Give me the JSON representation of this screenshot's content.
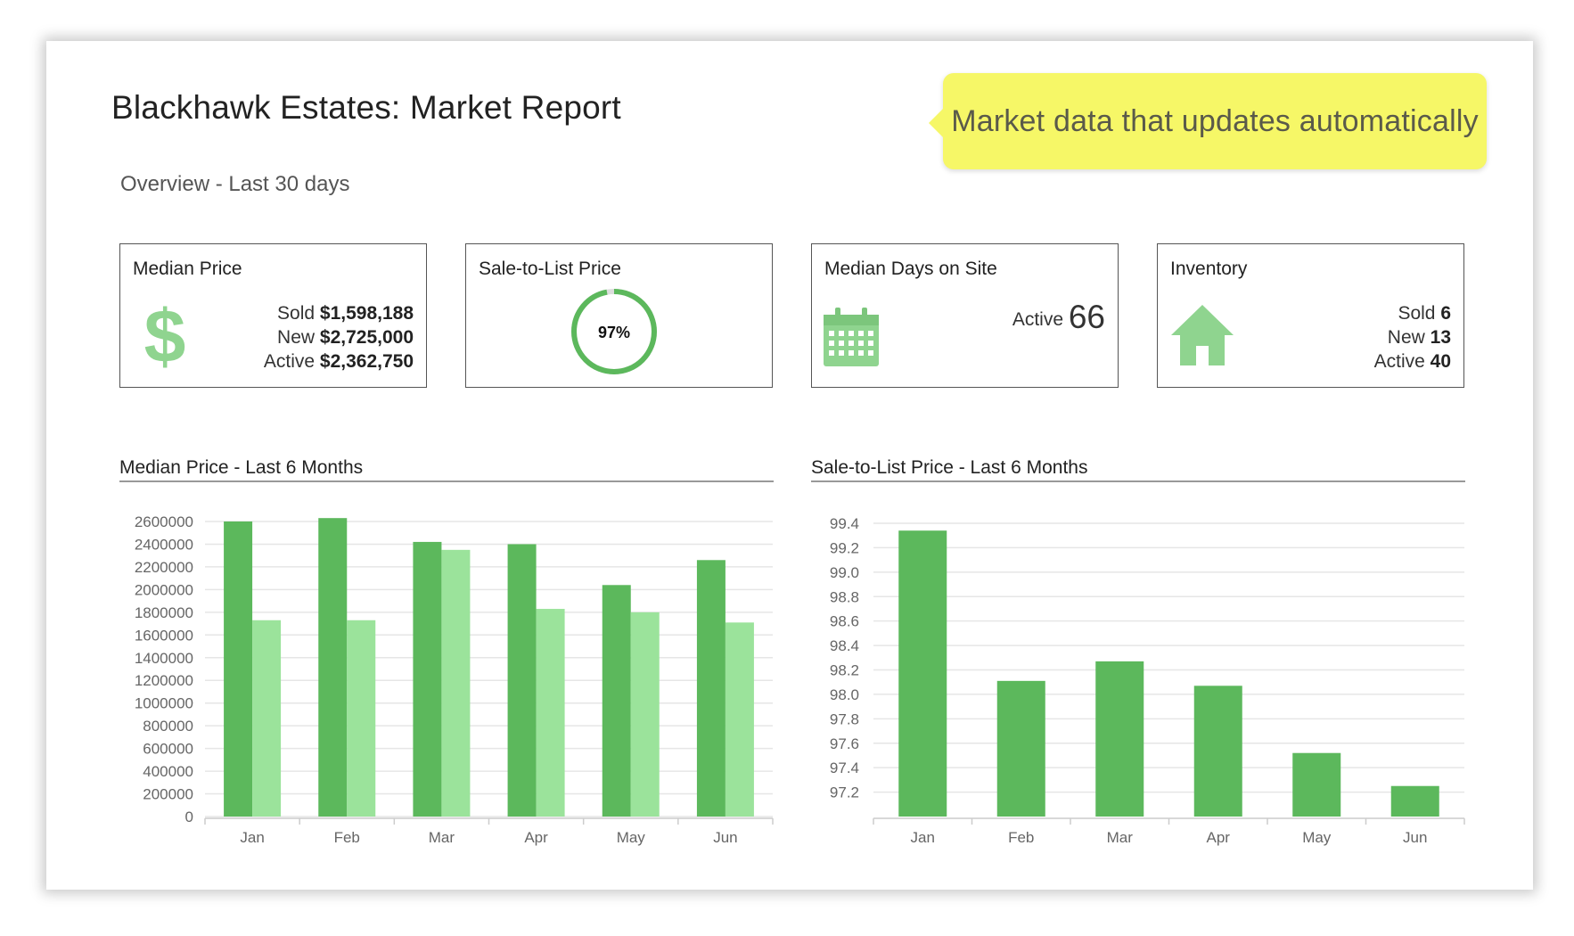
{
  "page": {
    "title": "Blackhawk Estates: Market Report",
    "overview": "Overview - Last 30 days",
    "callout": "Market data that updates automatically"
  },
  "colors": {
    "dark_green": "#5cb85c",
    "light_green": "#9be39b",
    "callout_yellow": "#f6f767"
  },
  "tiles": {
    "median_price": {
      "title": "Median Price",
      "icon": "dollar-sign-icon",
      "rows": [
        {
          "label": "Sold",
          "value": "$1,598,188"
        },
        {
          "label": "New",
          "value": "$2,725,000"
        },
        {
          "label": "Active",
          "value": "$2,362,750"
        }
      ]
    },
    "sale_to_list": {
      "title": "Sale-to-List Price",
      "value_text": "97%",
      "percent": 97
    },
    "days_on_site": {
      "title": "Median Days on Site",
      "icon": "calendar-icon",
      "label": "Active",
      "value": "66"
    },
    "inventory": {
      "title": "Inventory",
      "icon": "house-icon",
      "rows": [
        {
          "label": "Sold",
          "value": "6"
        },
        {
          "label": "New",
          "value": "13"
        },
        {
          "label": "Active",
          "value": "40"
        }
      ]
    }
  },
  "chart_data": [
    {
      "type": "bar",
      "title": "Median Price - Last 6 Months",
      "categories": [
        "Jan",
        "Feb",
        "Mar",
        "Apr",
        "May",
        "Jun"
      ],
      "series": [
        {
          "values": [
            2600000,
            2630000,
            2420000,
            2400000,
            2040000,
            2260000
          ],
          "color": "#5cb85c"
        },
        {
          "values": [
            1730000,
            1730000,
            2350000,
            1830000,
            1800000,
            1710000
          ],
          "color": "#9be39b"
        }
      ],
      "ylim": [
        0,
        2600000
      ],
      "yticks": [
        "0",
        "200000",
        "400000",
        "600000",
        "800000",
        "1000000",
        "1200000",
        "1400000",
        "1600000",
        "1800000",
        "2000000",
        "2200000",
        "2400000",
        "2600000"
      ],
      "grid": true
    },
    {
      "type": "bar",
      "title": "Sale-to-List Price - Last 6 Months",
      "categories": [
        "Jan",
        "Feb",
        "Mar",
        "Apr",
        "May",
        "Jun"
      ],
      "series": [
        {
          "values": [
            99.34,
            98.11,
            98.27,
            98.07,
            97.52,
            97.25
          ],
          "color": "#5cb85c"
        }
      ],
      "ylim": [
        97.0,
        99.4
      ],
      "yticks": [
        "97.2",
        "97.4",
        "97.6",
        "97.8",
        "98.0",
        "98.2",
        "98.4",
        "98.6",
        "98.8",
        "99.0",
        "99.2",
        "99.4"
      ],
      "grid": true
    }
  ]
}
